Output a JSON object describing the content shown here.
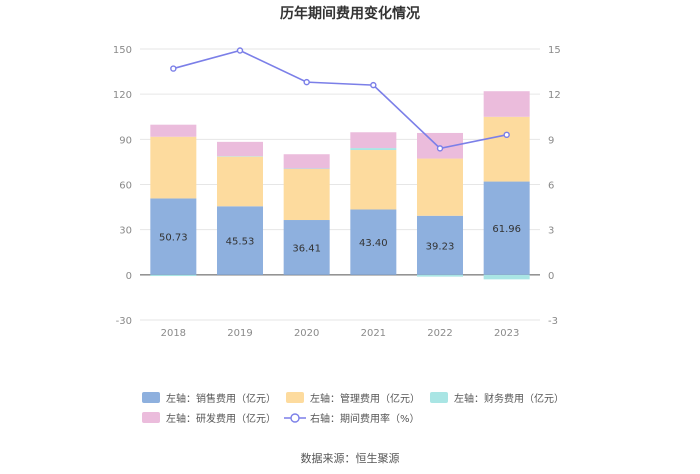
{
  "chart_data": {
    "type": "bar",
    "title": "历年期间费用变化情况",
    "categories": [
      "2018",
      "2019",
      "2020",
      "2021",
      "2022",
      "2023"
    ],
    "left_axis": {
      "ylim": [
        -30,
        150
      ],
      "ticks": [
        "-30",
        "0",
        "30",
        "60",
        "90",
        "120",
        "150"
      ]
    },
    "right_axis": {
      "ylim": [
        -3,
        15
      ],
      "ticks": [
        "-3",
        "0",
        "3",
        "6",
        "9",
        "12",
        "15"
      ]
    },
    "series": [
      {
        "key": "sales",
        "name": "左轴：销售费用（亿元）",
        "type": "bar",
        "axis": "left",
        "color": "#8eb0de",
        "values": [
          50.73,
          45.53,
          36.41,
          43.4,
          39.23,
          61.96
        ],
        "labels": [
          "50.73",
          "45.53",
          "36.41",
          "43.40",
          "39.23",
          "61.96"
        ]
      },
      {
        "key": "mgmt",
        "name": "左轴：管理费用（亿元）",
        "type": "bar",
        "axis": "left",
        "color": "#fddb9e",
        "values": [
          41.0,
          33.0,
          34.0,
          39.5,
          38.0,
          43.0
        ]
      },
      {
        "key": "fin",
        "name": "左轴：财务费用（亿元）",
        "type": "bar",
        "axis": "left",
        "color": "#a9e5e4",
        "values": [
          -0.8,
          0.3,
          0.2,
          1.3,
          -1.2,
          -3.0
        ]
      },
      {
        "key": "rd",
        "name": "左轴：研发费用（亿元）",
        "type": "bar",
        "axis": "left",
        "color": "#ebbcdc",
        "values": [
          8.0,
          9.5,
          9.5,
          10.5,
          17.0,
          17.0
        ]
      },
      {
        "key": "rate",
        "name": "右轴：期间费用率（%）",
        "type": "line",
        "axis": "right",
        "color": "#7b7fe8",
        "values": [
          13.7,
          14.9,
          12.8,
          12.6,
          8.4,
          9.3
        ]
      }
    ]
  },
  "footer": {
    "source": "数据来源：恒生聚源"
  }
}
